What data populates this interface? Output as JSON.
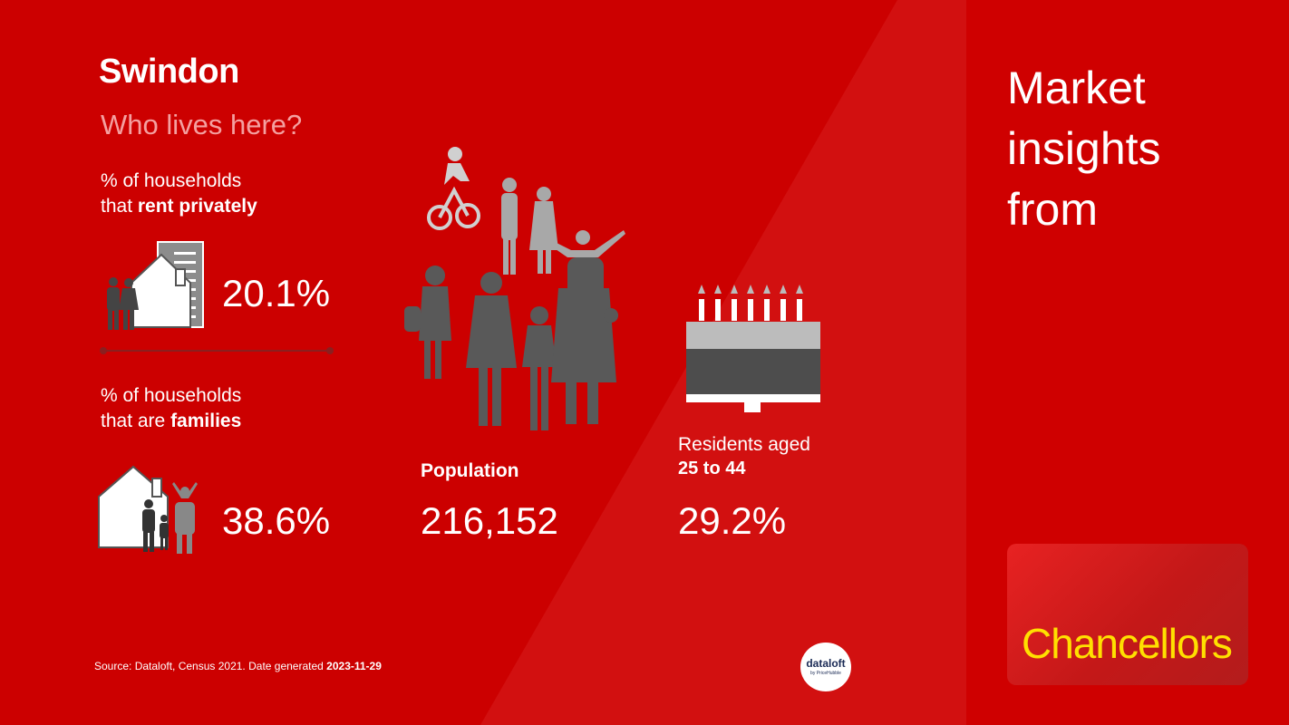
{
  "header": {
    "title": "Swindon",
    "subtitle": "Who lives here?"
  },
  "rent": {
    "label_line1": "% of households",
    "label_prefix": "that ",
    "label_bold": "rent privately",
    "value": "20.1%",
    "icon": "house-with-apartment-icon"
  },
  "families": {
    "label_line1": "% of households",
    "label_prefix": "that are ",
    "label_bold": "families",
    "value": "38.6%",
    "icon": "house-with-family-icon"
  },
  "population": {
    "label": "Population",
    "value": "216,152",
    "icon": "people-crowd-icon"
  },
  "age": {
    "label_line1": "Residents aged",
    "label_bold": "25 to 44",
    "value": "29.2%",
    "icon": "birthday-cake-icon"
  },
  "side": {
    "line1": "Market",
    "line2": "insights",
    "line3": "from",
    "logo_text": "Chancellors"
  },
  "footer": {
    "source_text": "Source: Dataloft, Census 2021. Date generated",
    "date": "2023-11-29",
    "badge_line1": "dataloft",
    "badge_line2": "by PriceHubble"
  },
  "colors": {
    "background": "#cc0000",
    "accent_yellow": "#ffe000",
    "subtitle_pink": "#f4a0a0"
  }
}
